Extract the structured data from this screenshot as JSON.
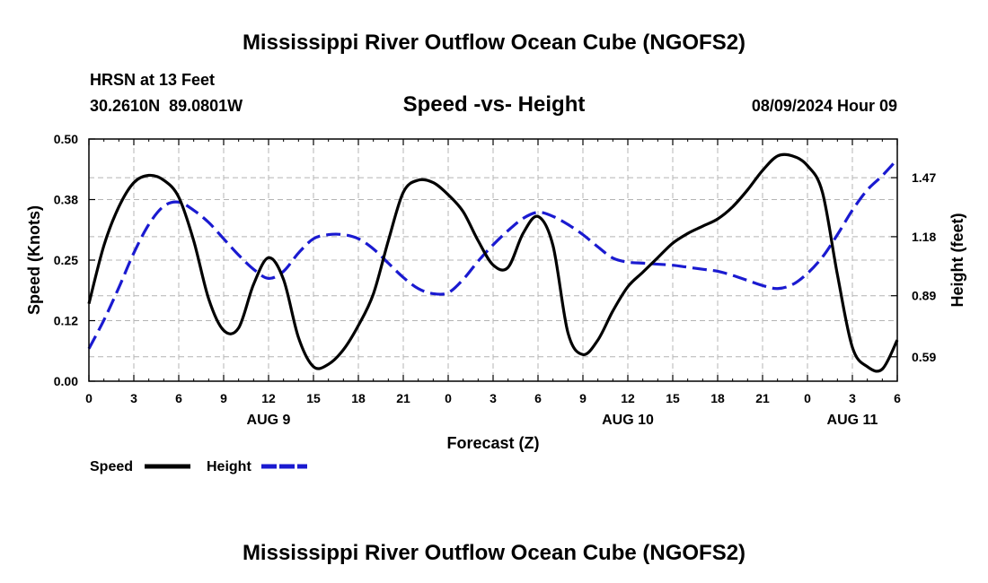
{
  "page": {
    "title": "Mississippi River Outflow Ocean Cube (NGOFS2)",
    "footer_title": "Mississippi River Outflow Ocean Cube (NGOFS2)",
    "station": "HRSN at 13 Feet",
    "coords": "30.2610N  89.0801W",
    "subtitle": "Speed -vs- Height",
    "timestamp": "08/09/2024 Hour 09"
  },
  "chart_data": {
    "type": "line",
    "title": "Speed -vs- Height",
    "xlabel": "Forecast (Z)",
    "ylabel_left": "Speed (Knots)",
    "ylabel_right": "Height (feet)",
    "x_range": [
      0,
      54
    ],
    "x_ticks": [
      {
        "x": 0,
        "label": "0"
      },
      {
        "x": 3,
        "label": "3"
      },
      {
        "x": 6,
        "label": "6"
      },
      {
        "x": 9,
        "label": "9"
      },
      {
        "x": 12,
        "label": "12"
      },
      {
        "x": 15,
        "label": "15"
      },
      {
        "x": 18,
        "label": "18"
      },
      {
        "x": 21,
        "label": "21"
      },
      {
        "x": 24,
        "label": "0"
      },
      {
        "x": 27,
        "label": "3"
      },
      {
        "x": 30,
        "label": "6"
      },
      {
        "x": 33,
        "label": "9"
      },
      {
        "x": 36,
        "label": "12"
      },
      {
        "x": 39,
        "label": "15"
      },
      {
        "x": 42,
        "label": "18"
      },
      {
        "x": 45,
        "label": "21"
      },
      {
        "x": 48,
        "label": "0"
      },
      {
        "x": 51,
        "label": "3"
      },
      {
        "x": 54,
        "label": "6"
      }
    ],
    "date_labels": [
      {
        "x": 12,
        "label": "AUG 9"
      },
      {
        "x": 36,
        "label": "AUG 10"
      },
      {
        "x": 51,
        "label": "AUG 11"
      }
    ],
    "y_left_range": [
      0,
      0.5
    ],
    "y_left_ticks": [
      {
        "v": 0.0,
        "label": "0.00"
      },
      {
        "v": 0.125,
        "label": "0.12"
      },
      {
        "v": 0.25,
        "label": "0.25"
      },
      {
        "v": 0.375,
        "label": "0.38"
      },
      {
        "v": 0.5,
        "label": "0.50"
      }
    ],
    "y_right_range": [
      0.47,
      1.66
    ],
    "y_right_ticks": [
      {
        "v": 0.59,
        "label": "0.59"
      },
      {
        "v": 0.89,
        "label": "0.89"
      },
      {
        "v": 1.18,
        "label": "1.18"
      },
      {
        "v": 1.47,
        "label": "1.47"
      }
    ],
    "grid": true,
    "legend_position": "bottom-left",
    "series": [
      {
        "name": "Speed",
        "color": "#000000",
        "dash": false,
        "axis": "left",
        "points": [
          [
            0,
            0.16
          ],
          [
            1,
            0.28
          ],
          [
            2,
            0.36
          ],
          [
            3,
            0.41
          ],
          [
            4,
            0.425
          ],
          [
            5,
            0.415
          ],
          [
            6,
            0.38
          ],
          [
            7,
            0.29
          ],
          [
            8,
            0.17
          ],
          [
            9,
            0.105
          ],
          [
            10,
            0.11
          ],
          [
            11,
            0.2
          ],
          [
            12,
            0.255
          ],
          [
            13,
            0.21
          ],
          [
            14,
            0.09
          ],
          [
            15,
            0.03
          ],
          [
            16,
            0.035
          ],
          [
            17,
            0.065
          ],
          [
            18,
            0.115
          ],
          [
            19,
            0.18
          ],
          [
            20,
            0.29
          ],
          [
            21,
            0.39
          ],
          [
            22,
            0.415
          ],
          [
            23,
            0.41
          ],
          [
            24,
            0.385
          ],
          [
            25,
            0.35
          ],
          [
            26,
            0.29
          ],
          [
            27,
            0.24
          ],
          [
            28,
            0.235
          ],
          [
            29,
            0.305
          ],
          [
            30,
            0.34
          ],
          [
            31,
            0.28
          ],
          [
            32,
            0.1
          ],
          [
            33,
            0.055
          ],
          [
            34,
            0.085
          ],
          [
            35,
            0.145
          ],
          [
            36,
            0.195
          ],
          [
            37,
            0.225
          ],
          [
            38,
            0.255
          ],
          [
            39,
            0.285
          ],
          [
            40,
            0.305
          ],
          [
            41,
            0.32
          ],
          [
            42,
            0.335
          ],
          [
            43,
            0.36
          ],
          [
            44,
            0.395
          ],
          [
            45,
            0.435
          ],
          [
            46,
            0.465
          ],
          [
            47,
            0.465
          ],
          [
            48,
            0.445
          ],
          [
            49,
            0.39
          ],
          [
            50,
            0.22
          ],
          [
            51,
            0.07
          ],
          [
            52,
            0.03
          ],
          [
            53,
            0.025
          ],
          [
            54,
            0.085
          ]
        ]
      },
      {
        "name": "Height",
        "color": "#1a1ad0",
        "dash": true,
        "axis": "right",
        "points": [
          [
            0,
            0.63
          ],
          [
            1,
            0.77
          ],
          [
            2,
            0.93
          ],
          [
            3,
            1.1
          ],
          [
            4,
            1.24
          ],
          [
            5,
            1.33
          ],
          [
            6,
            1.35
          ],
          [
            7,
            1.31
          ],
          [
            8,
            1.25
          ],
          [
            9,
            1.17
          ],
          [
            10,
            1.09
          ],
          [
            11,
            1.02
          ],
          [
            12,
            0.975
          ],
          [
            13,
            1.01
          ],
          [
            14,
            1.1
          ],
          [
            15,
            1.17
          ],
          [
            16,
            1.19
          ],
          [
            17,
            1.19
          ],
          [
            18,
            1.17
          ],
          [
            19,
            1.12
          ],
          [
            20,
            1.05
          ],
          [
            21,
            0.98
          ],
          [
            22,
            0.925
          ],
          [
            23,
            0.9
          ],
          [
            24,
            0.905
          ],
          [
            25,
            0.97
          ],
          [
            26,
            1.06
          ],
          [
            27,
            1.14
          ],
          [
            28,
            1.21
          ],
          [
            29,
            1.27
          ],
          [
            30,
            1.3
          ],
          [
            31,
            1.28
          ],
          [
            32,
            1.24
          ],
          [
            33,
            1.19
          ],
          [
            34,
            1.13
          ],
          [
            35,
            1.075
          ],
          [
            36,
            1.055
          ],
          [
            37,
            1.05
          ],
          [
            38,
            1.045
          ],
          [
            39,
            1.04
          ],
          [
            40,
            1.03
          ],
          [
            41,
            1.02
          ],
          [
            42,
            1.01
          ],
          [
            43,
            0.99
          ],
          [
            44,
            0.965
          ],
          [
            45,
            0.94
          ],
          [
            46,
            0.925
          ],
          [
            47,
            0.945
          ],
          [
            48,
            1.0
          ],
          [
            49,
            1.08
          ],
          [
            50,
            1.19
          ],
          [
            51,
            1.31
          ],
          [
            52,
            1.41
          ],
          [
            53,
            1.48
          ],
          [
            54,
            1.56
          ]
        ]
      }
    ]
  }
}
